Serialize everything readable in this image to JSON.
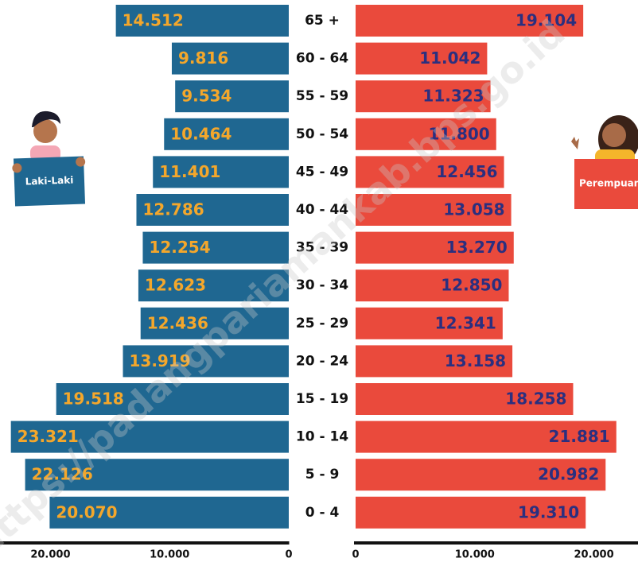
{
  "chart_data": {
    "type": "pyramid",
    "watermark": "https://padangpariamankab.bps.go.id",
    "categories": [
      "65 +",
      "60 - 64",
      "55 - 59",
      "50 - 54",
      "45 - 49",
      "40 - 44",
      "35 - 39",
      "30 - 34",
      "25 - 29",
      "20 - 24",
      "15 - 19",
      "10 - 14",
      "5 - 9",
      "0 - 4"
    ],
    "series": [
      {
        "name": "Laki-Laki",
        "color": "#1f6791",
        "label_color": "#f4a72b",
        "side": "left",
        "values": [
          14512,
          9816,
          9534,
          10464,
          11401,
          12786,
          12254,
          12623,
          12436,
          13919,
          19518,
          23321,
          22126,
          20070
        ],
        "value_labels": [
          "14.512",
          "9.816",
          "9.534",
          "10.464",
          "11.401",
          "12.786",
          "12.254",
          "12.623",
          "12.436",
          "13.919",
          "19.518",
          "23.321",
          "22.126",
          "20.070"
        ]
      },
      {
        "name": "Perempuan",
        "color": "#ea4a3c",
        "label_color": "#2b2f7f",
        "side": "right",
        "values": [
          19104,
          11042,
          11323,
          11800,
          12456,
          13058,
          13270,
          12850,
          12341,
          13158,
          18258,
          21881,
          20982,
          19310
        ],
        "value_labels": [
          "19.104",
          "11.042",
          "11.323",
          "11.800",
          "12.456",
          "13.058",
          "13.270",
          "12.850",
          "12.341",
          "13.158",
          "18.258",
          "21.881",
          "20.982",
          "19.310"
        ]
      }
    ],
    "xlim": [
      0,
      23500
    ],
    "xticks": [
      {
        "value": 20000,
        "label": "20.000"
      },
      {
        "value": 10000,
        "label": "10.000"
      },
      0
    ]
  }
}
